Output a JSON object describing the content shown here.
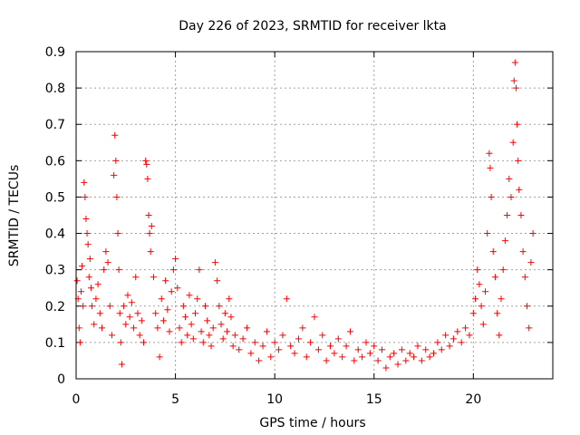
{
  "chart_data": {
    "type": "scatter",
    "title": "Day 226 of 2023, SRMTID for receiver lkta",
    "xlabel": "GPS time / hours",
    "ylabel": "SRMTID / TECUs",
    "xlim": [
      0,
      24
    ],
    "ylim": [
      0,
      0.9
    ],
    "grid": true,
    "x_ticks": [
      0,
      5,
      10,
      15,
      20
    ],
    "y_ticks": [
      0,
      0.1,
      0.2,
      0.3,
      0.4,
      0.5,
      0.6,
      0.7,
      0.8,
      0.9
    ],
    "x_tick_labels": [
      "0",
      "5",
      "10",
      "15",
      "20"
    ],
    "y_tick_labels": [
      "0",
      "0.1",
      "0.2",
      "0.3",
      "0.4",
      "0.5",
      "0.6",
      "0.7",
      "0.8",
      "0.9"
    ],
    "marker": "+",
    "marker_color": "#ff0000",
    "series": [
      {
        "name": "SRMTID",
        "points": [
          [
            0.05,
            0.27
          ],
          [
            0.1,
            0.22
          ],
          [
            0.15,
            0.14
          ],
          [
            0.2,
            0.1
          ],
          [
            0.25,
            0.24
          ],
          [
            0.3,
            0.31
          ],
          [
            0.35,
            0.2
          ],
          [
            0.4,
            0.54
          ],
          [
            0.45,
            0.5
          ],
          [
            0.5,
            0.44
          ],
          [
            0.55,
            0.4
          ],
          [
            0.6,
            0.37
          ],
          [
            0.65,
            0.28
          ],
          [
            0.7,
            0.33
          ],
          [
            0.75,
            0.25
          ],
          [
            0.8,
            0.2
          ],
          [
            0.9,
            0.15
          ],
          [
            1.0,
            0.22
          ],
          [
            1.1,
            0.26
          ],
          [
            1.2,
            0.18
          ],
          [
            1.3,
            0.14
          ],
          [
            1.4,
            0.3
          ],
          [
            1.5,
            0.35
          ],
          [
            1.6,
            0.32
          ],
          [
            1.7,
            0.2
          ],
          [
            1.8,
            0.12
          ],
          [
            1.9,
            0.56
          ],
          [
            1.95,
            0.67
          ],
          [
            2.0,
            0.6
          ],
          [
            2.05,
            0.5
          ],
          [
            2.1,
            0.4
          ],
          [
            2.15,
            0.3
          ],
          [
            2.2,
            0.18
          ],
          [
            2.25,
            0.1
          ],
          [
            2.3,
            0.04
          ],
          [
            2.4,
            0.2
          ],
          [
            2.5,
            0.15
          ],
          [
            2.6,
            0.23
          ],
          [
            2.7,
            0.17
          ],
          [
            2.8,
            0.21
          ],
          [
            2.9,
            0.14
          ],
          [
            3.0,
            0.28
          ],
          [
            3.1,
            0.18
          ],
          [
            3.2,
            0.12
          ],
          [
            3.3,
            0.16
          ],
          [
            3.4,
            0.1
          ],
          [
            3.5,
            0.6
          ],
          [
            3.55,
            0.59
          ],
          [
            3.6,
            0.55
          ],
          [
            3.65,
            0.45
          ],
          [
            3.7,
            0.4
          ],
          [
            3.75,
            0.35
          ],
          [
            3.8,
            0.42
          ],
          [
            3.9,
            0.28
          ],
          [
            4.0,
            0.18
          ],
          [
            4.1,
            0.14
          ],
          [
            4.2,
            0.06
          ],
          [
            4.3,
            0.22
          ],
          [
            4.4,
            0.16
          ],
          [
            4.5,
            0.27
          ],
          [
            4.6,
            0.19
          ],
          [
            4.7,
            0.13
          ],
          [
            4.8,
            0.24
          ],
          [
            4.9,
            0.3
          ],
          [
            5.0,
            0.33
          ],
          [
            5.1,
            0.25
          ],
          [
            5.2,
            0.14
          ],
          [
            5.3,
            0.1
          ],
          [
            5.4,
            0.2
          ],
          [
            5.5,
            0.17
          ],
          [
            5.6,
            0.12
          ],
          [
            5.7,
            0.23
          ],
          [
            5.8,
            0.15
          ],
          [
            5.9,
            0.11
          ],
          [
            6.0,
            0.18
          ],
          [
            6.1,
            0.22
          ],
          [
            6.2,
            0.3
          ],
          [
            6.3,
            0.13
          ],
          [
            6.4,
            0.1
          ],
          [
            6.5,
            0.2
          ],
          [
            6.6,
            0.16
          ],
          [
            6.7,
            0.12
          ],
          [
            6.8,
            0.09
          ],
          [
            6.9,
            0.14
          ],
          [
            7.0,
            0.32
          ],
          [
            7.1,
            0.27
          ],
          [
            7.2,
            0.2
          ],
          [
            7.3,
            0.15
          ],
          [
            7.4,
            0.11
          ],
          [
            7.5,
            0.18
          ],
          [
            7.6,
            0.13
          ],
          [
            7.7,
            0.22
          ],
          [
            7.8,
            0.17
          ],
          [
            7.9,
            0.09
          ],
          [
            8.0,
            0.12
          ],
          [
            8.2,
            0.08
          ],
          [
            8.4,
            0.11
          ],
          [
            8.6,
            0.14
          ],
          [
            8.8,
            0.07
          ],
          [
            9.0,
            0.1
          ],
          [
            9.2,
            0.05
          ],
          [
            9.4,
            0.09
          ],
          [
            9.6,
            0.13
          ],
          [
            9.8,
            0.06
          ],
          [
            10.0,
            0.1
          ],
          [
            10.2,
            0.08
          ],
          [
            10.4,
            0.12
          ],
          [
            10.6,
            0.22
          ],
          [
            10.8,
            0.09
          ],
          [
            11.0,
            0.07
          ],
          [
            11.2,
            0.11
          ],
          [
            11.4,
            0.14
          ],
          [
            11.6,
            0.06
          ],
          [
            11.8,
            0.1
          ],
          [
            12.0,
            0.17
          ],
          [
            12.2,
            0.08
          ],
          [
            12.4,
            0.12
          ],
          [
            12.6,
            0.05
          ],
          [
            12.8,
            0.09
          ],
          [
            13.0,
            0.07
          ],
          [
            13.2,
            0.11
          ],
          [
            13.4,
            0.06
          ],
          [
            13.6,
            0.09
          ],
          [
            13.8,
            0.13
          ],
          [
            14.0,
            0.05
          ],
          [
            14.2,
            0.08
          ],
          [
            14.4,
            0.06
          ],
          [
            14.6,
            0.1
          ],
          [
            14.8,
            0.07
          ],
          [
            15.0,
            0.09
          ],
          [
            15.2,
            0.05
          ],
          [
            15.4,
            0.08
          ],
          [
            15.6,
            0.03
          ],
          [
            15.8,
            0.06
          ],
          [
            16.0,
            0.07
          ],
          [
            16.2,
            0.04
          ],
          [
            16.4,
            0.08
          ],
          [
            16.6,
            0.05
          ],
          [
            16.8,
            0.07
          ],
          [
            17.0,
            0.06
          ],
          [
            17.2,
            0.09
          ],
          [
            17.4,
            0.05
          ],
          [
            17.6,
            0.08
          ],
          [
            17.8,
            0.06
          ],
          [
            18.0,
            0.07
          ],
          [
            18.2,
            0.1
          ],
          [
            18.4,
            0.08
          ],
          [
            18.6,
            0.12
          ],
          [
            18.8,
            0.09
          ],
          [
            19.0,
            0.11
          ],
          [
            19.2,
            0.13
          ],
          [
            19.4,
            0.1
          ],
          [
            19.6,
            0.14
          ],
          [
            19.8,
            0.12
          ],
          [
            20.0,
            0.18
          ],
          [
            20.1,
            0.22
          ],
          [
            20.2,
            0.3
          ],
          [
            20.3,
            0.26
          ],
          [
            20.4,
            0.2
          ],
          [
            20.5,
            0.15
          ],
          [
            20.6,
            0.24
          ],
          [
            20.7,
            0.4
          ],
          [
            20.8,
            0.62
          ],
          [
            20.85,
            0.58
          ],
          [
            20.9,
            0.5
          ],
          [
            21.0,
            0.35
          ],
          [
            21.1,
            0.28
          ],
          [
            21.2,
            0.18
          ],
          [
            21.3,
            0.12
          ],
          [
            21.4,
            0.22
          ],
          [
            21.5,
            0.3
          ],
          [
            21.6,
            0.38
          ],
          [
            21.7,
            0.45
          ],
          [
            21.8,
            0.55
          ],
          [
            21.9,
            0.5
          ],
          [
            22.0,
            0.65
          ],
          [
            22.05,
            0.82
          ],
          [
            22.1,
            0.87
          ],
          [
            22.15,
            0.8
          ],
          [
            22.2,
            0.7
          ],
          [
            22.25,
            0.6
          ],
          [
            22.3,
            0.52
          ],
          [
            22.4,
            0.45
          ],
          [
            22.5,
            0.35
          ],
          [
            22.6,
            0.28
          ],
          [
            22.7,
            0.2
          ],
          [
            22.8,
            0.14
          ],
          [
            22.9,
            0.32
          ],
          [
            23.0,
            0.4
          ]
        ]
      }
    ]
  }
}
